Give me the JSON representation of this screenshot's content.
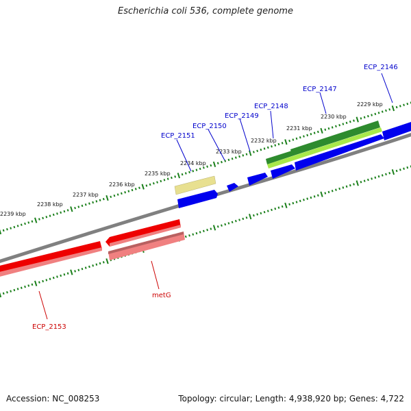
{
  "title": "Escherichia coli 536, complete genome",
  "footer": {
    "accession": "Accession: NC_008253",
    "summary": "Topology: circular; Length: 4,938,920 bp; Genes: 4,722"
  },
  "colors": {
    "backbone": "#808080",
    "tick": "#1a7f1a",
    "plus_label": "#0000cc",
    "minus_label": "#cc0000",
    "cds_plus": "#0000ee",
    "cds_minus": "#ee0000",
    "gene_green": "#2e8b2e",
    "gene_lime": "#a8e84a",
    "gene_tan": "#e8e090",
    "gene_pink": "#f08080"
  },
  "tick_labels": [
    "2229 kbp",
    "2230 kbp",
    "2231 kbp",
    "2232 kbp",
    "2233 kbp",
    "2234 kbp",
    "2235 kbp",
    "2236 kbp",
    "2237 kbp",
    "2238 kbp",
    "2239 kbp"
  ],
  "gene_labels_plus": [
    "ECP_2146",
    "ECP_2147",
    "ECP_2148",
    "ECP_2149",
    "ECP_2150",
    "ECP_2151"
  ],
  "gene_labels_minus": [
    "metG",
    "ECP_2153"
  ]
}
